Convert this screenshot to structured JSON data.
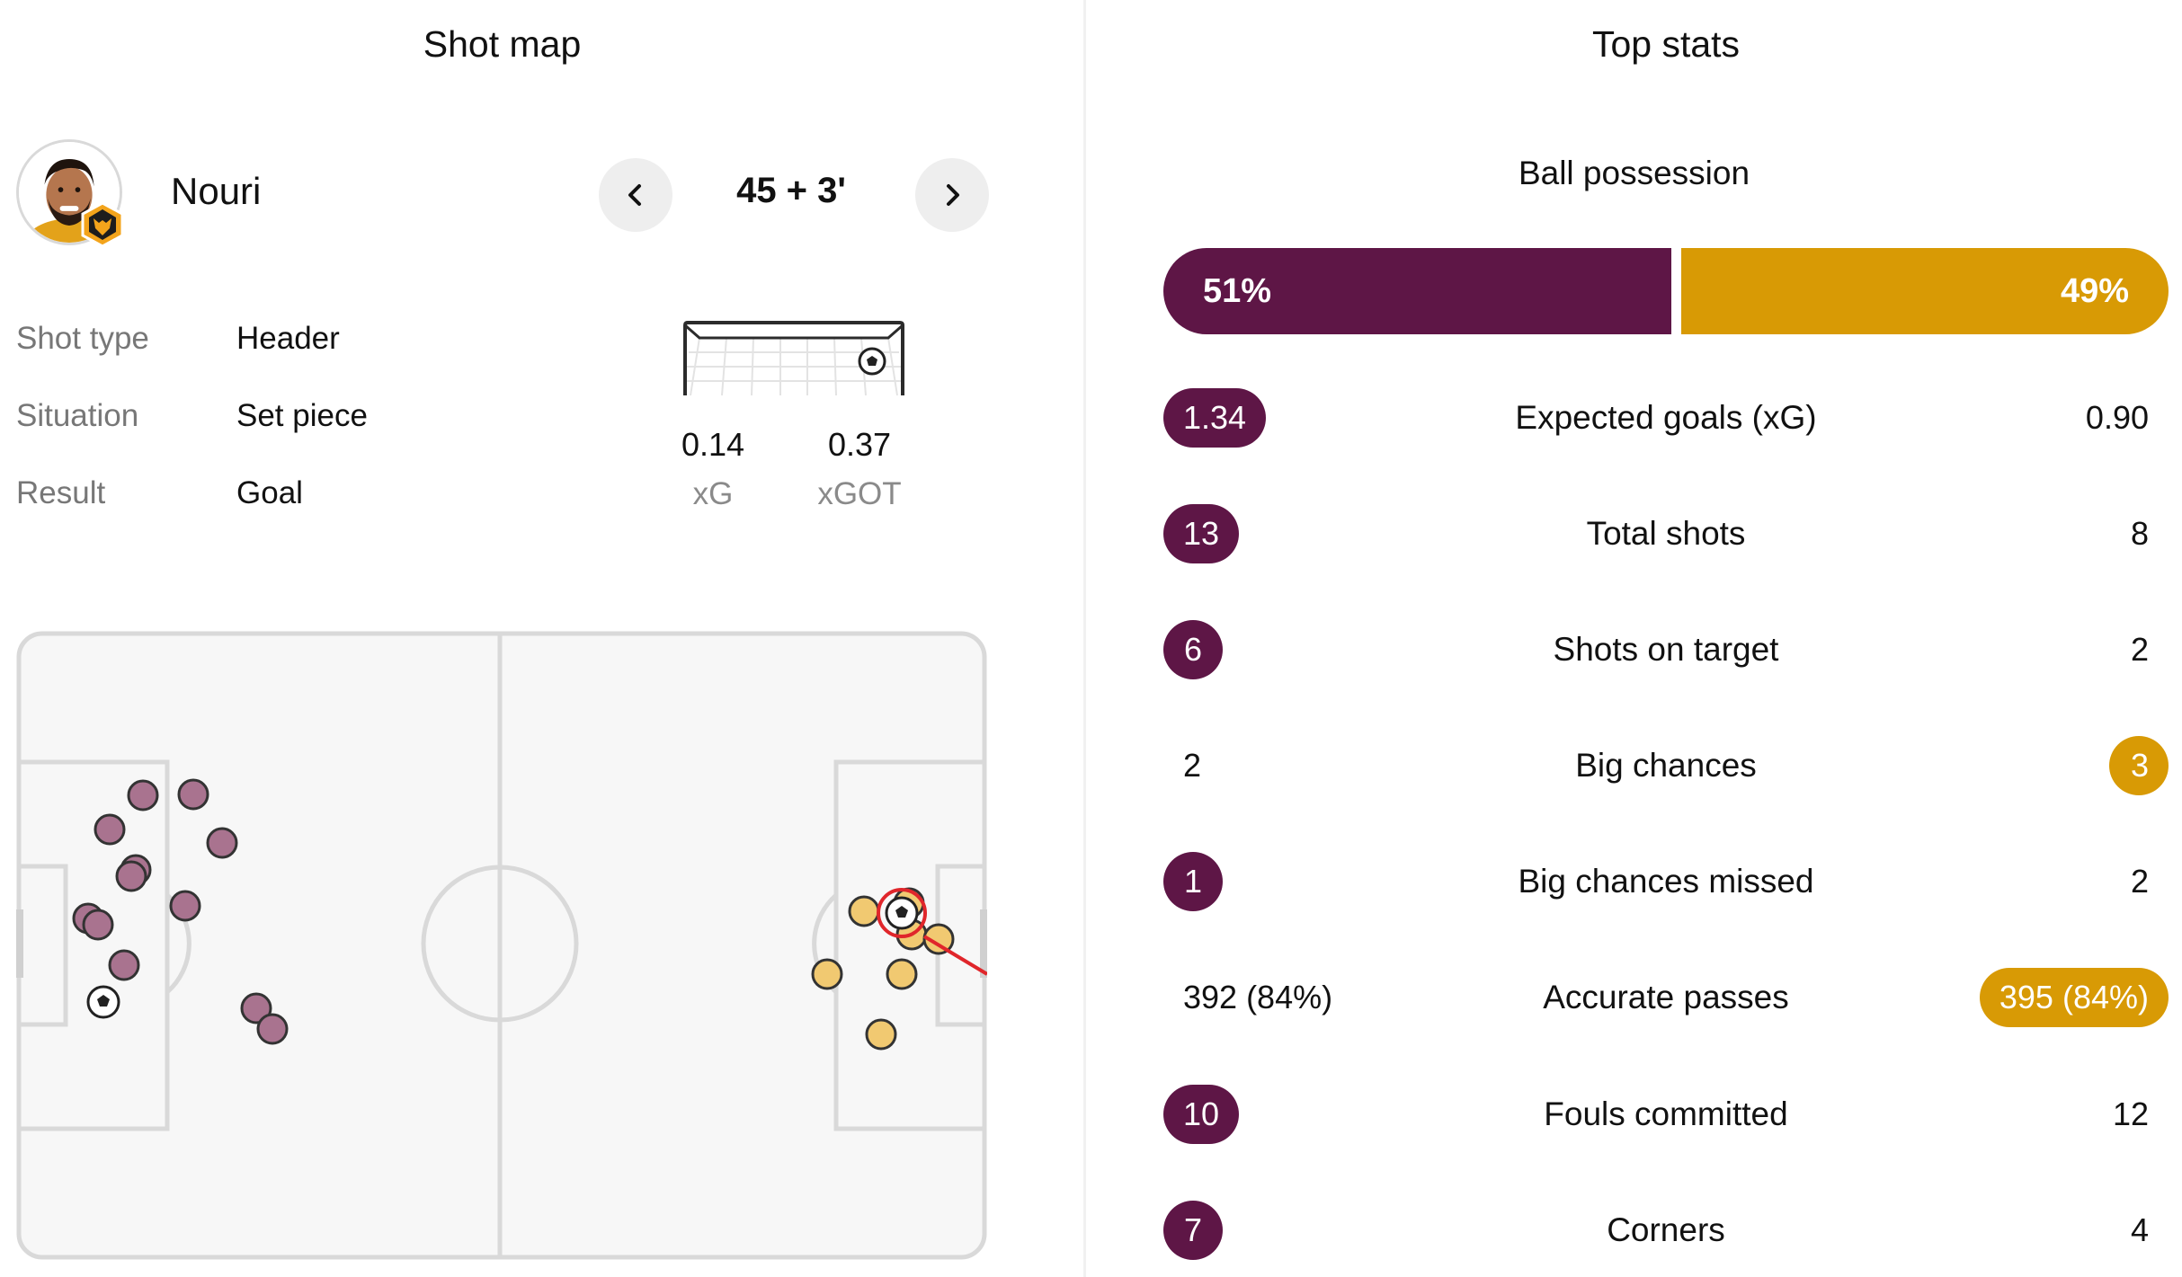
{
  "shot_map": {
    "title": "Shot map",
    "player": {
      "name": "Nouri"
    },
    "minute": "45 + 3'",
    "details": [
      {
        "label": "Shot type",
        "value": "Header"
      },
      {
        "label": "Situation",
        "value": "Set piece"
      },
      {
        "label": "Result",
        "value": "Goal"
      }
    ],
    "xg": {
      "value": "0.14",
      "label": "xG"
    },
    "xgot": {
      "value": "0.37",
      "label": "xGOT"
    },
    "colors": {
      "home": "#a9738f",
      "away": "#f1c971",
      "selected": "#e0262b"
    }
  },
  "top_stats": {
    "title": "Top stats",
    "possession": {
      "label": "Ball possession",
      "home": "51%",
      "away": "49%",
      "home_value": 51,
      "away_value": 49
    },
    "rows": [
      {
        "label": "Expected goals (xG)",
        "home": "1.34",
        "away": "0.90",
        "highlight": "home"
      },
      {
        "label": "Total shots",
        "home": "13",
        "away": "8",
        "highlight": "home"
      },
      {
        "label": "Shots on target",
        "home": "6",
        "away": "2",
        "highlight": "home"
      },
      {
        "label": "Big chances",
        "home": "2",
        "away": "3",
        "highlight": "away"
      },
      {
        "label": "Big chances missed",
        "home": "1",
        "away": "2",
        "highlight": "home"
      },
      {
        "label": "Accurate passes",
        "home": "392 (84%)",
        "away": "395 (84%)",
        "highlight": "away"
      },
      {
        "label": "Fouls committed",
        "home": "10",
        "away": "12",
        "highlight": "home"
      },
      {
        "label": "Corners",
        "home": "7",
        "away": "4",
        "highlight": "home"
      }
    ],
    "colors": {
      "home": "#5e1646",
      "away": "#d89a05"
    }
  }
}
